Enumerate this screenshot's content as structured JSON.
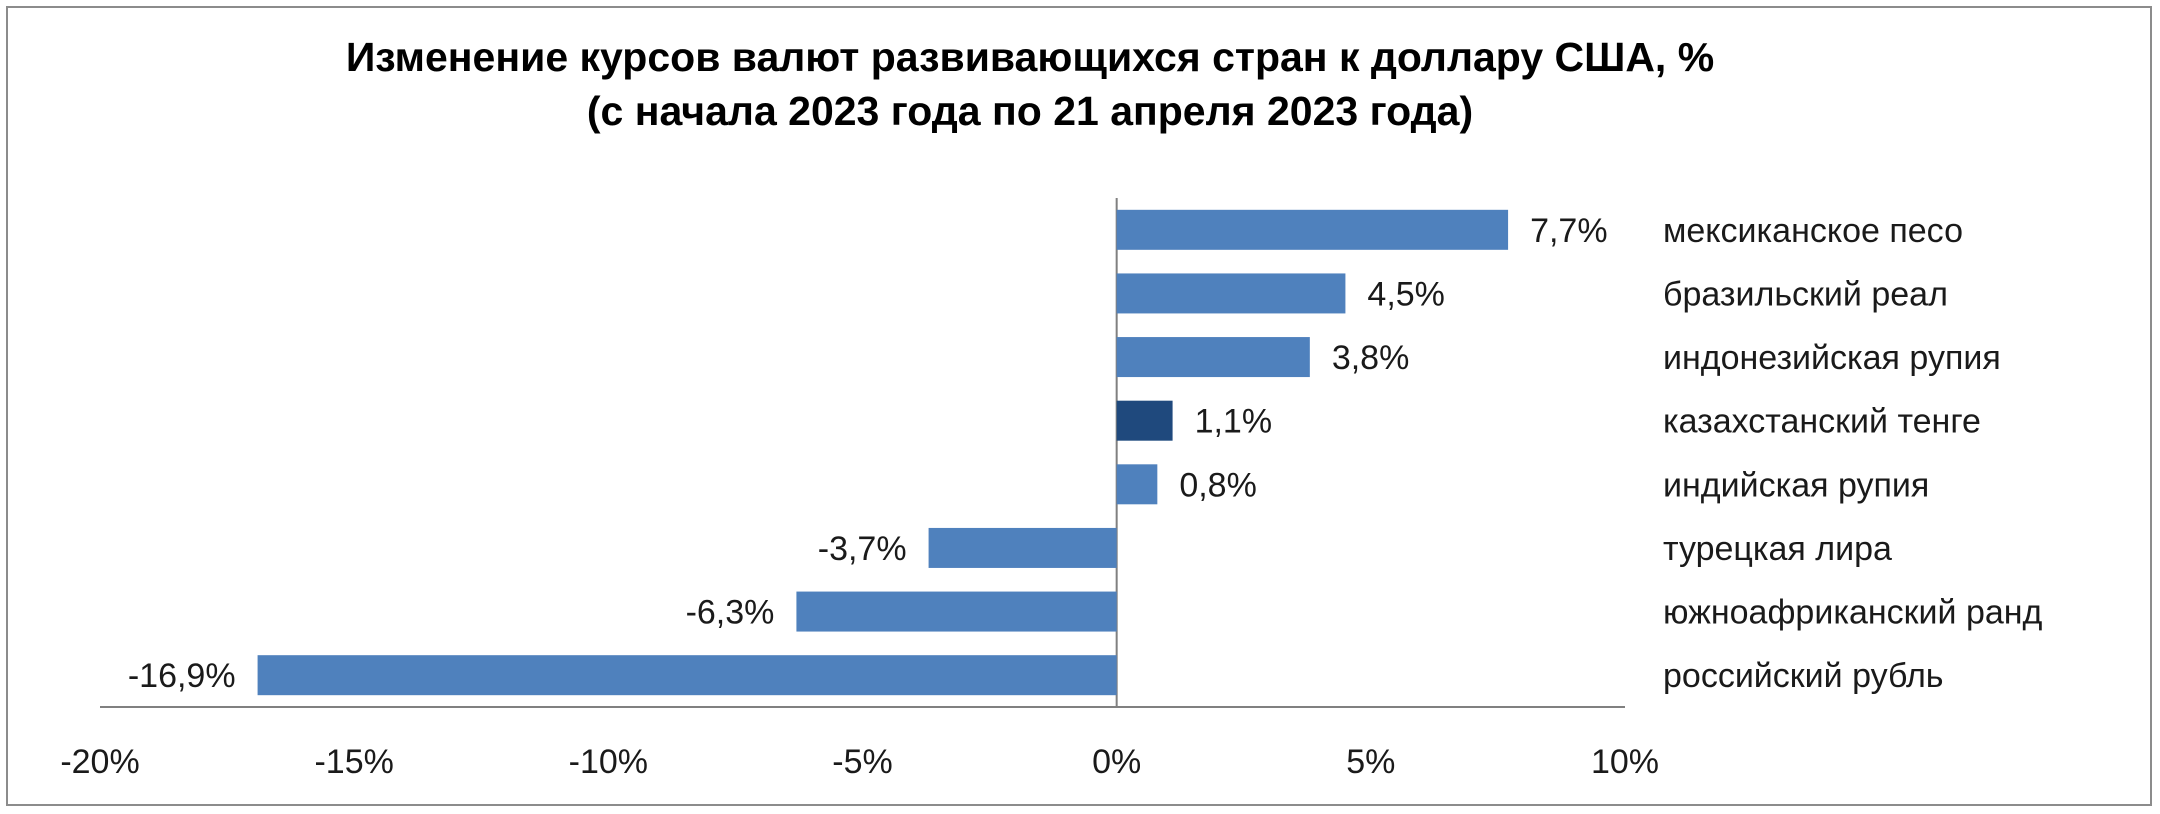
{
  "chart_data": {
    "type": "bar",
    "orientation": "horizontal",
    "title": "Изменение курсов валют развивающихся стран к доллару США, %",
    "subtitle": "(с начала 2023 года по 21 апреля 2023 года)",
    "categories": [
      "мексиканское песо",
      "бразильский реал",
      "индонезийская рупия",
      "казахстанский тенге",
      "индийская рупия",
      "турецкая лира",
      "южноафриканский ранд",
      "российский рубль"
    ],
    "values": [
      7.7,
      4.5,
      3.8,
      1.1,
      0.8,
      -3.7,
      -6.3,
      -16.9
    ],
    "value_labels": [
      "7,7%",
      "4,5%",
      "3,8%",
      "1,1%",
      "0,8%",
      "-3,7%",
      "-6,3%",
      "-16,9%"
    ],
    "highlight_index": 3,
    "xlim": [
      -20,
      10
    ],
    "x_ticks": [
      -20,
      -15,
      -10,
      -5,
      0,
      5,
      10
    ],
    "x_tick_labels": [
      "-20%",
      "-15%",
      "-10%",
      "-5%",
      "0%",
      "5%",
      "10%"
    ],
    "colors": {
      "bar": "#4f81bd",
      "highlight": "#1f497d",
      "axis": "#808080"
    },
    "grid": false,
    "legend": "none"
  }
}
